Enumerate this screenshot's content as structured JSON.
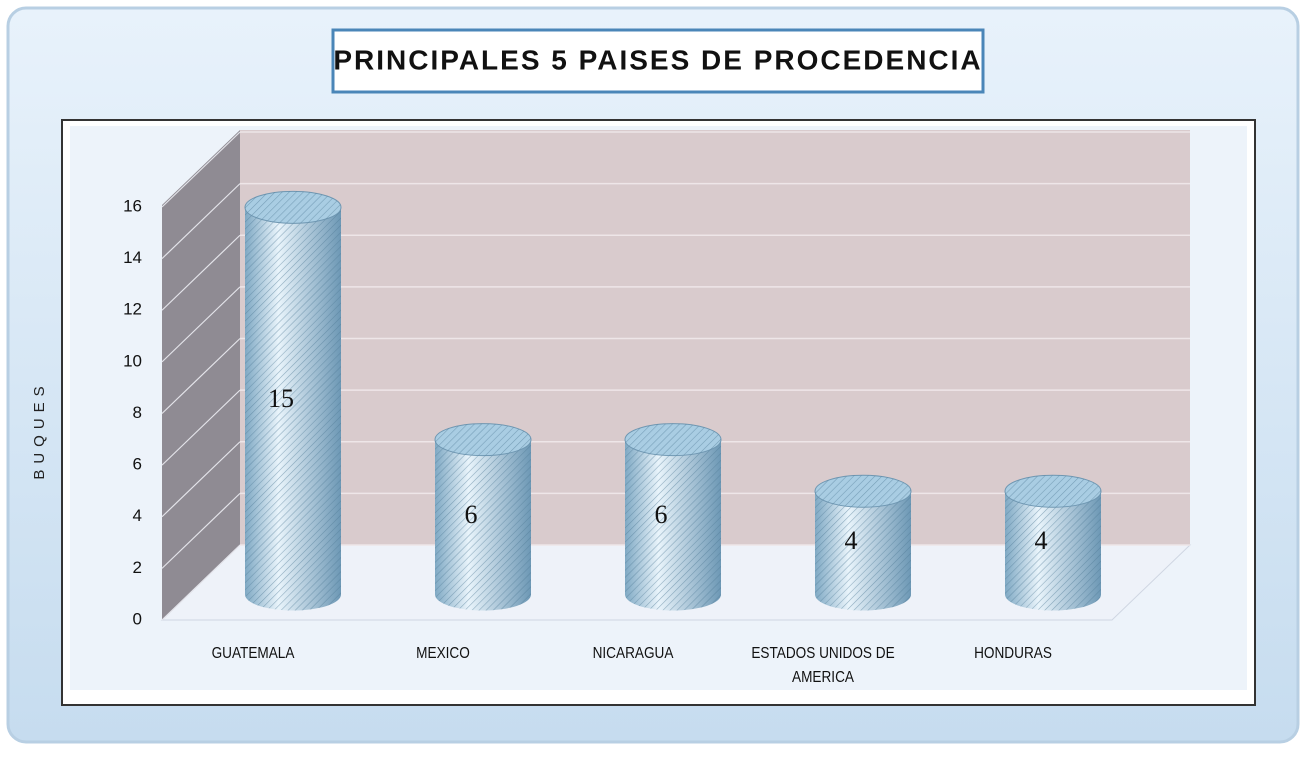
{
  "chart_data": {
    "type": "bar3d",
    "title": "PRINCIPALES 5 PAISES DE PROCEDENCIA",
    "y_label": "BUQUES",
    "categories": [
      "GUATEMALA",
      "MEXICO",
      "NICARAGUA",
      "ESTADOS UNIDOS DE AMERICA",
      "HONDURAS"
    ],
    "values": [
      15,
      6,
      6,
      4,
      4
    ],
    "color": "#a9cde3",
    "ylim": [
      0,
      16
    ],
    "yticks": [
      0,
      2,
      4,
      6,
      8,
      10,
      12,
      14,
      16
    ],
    "grid": true
  }
}
